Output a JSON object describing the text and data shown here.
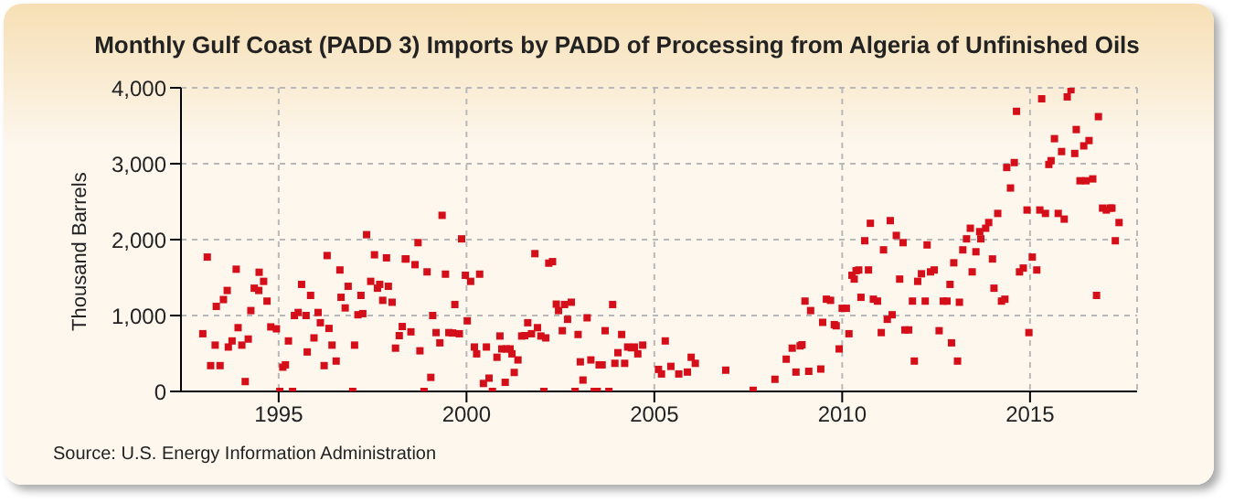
{
  "chart_data": {
    "type": "scatter",
    "title": "Monthly Gulf Coast (PADD 3) Imports by PADD of Processing from Algeria of Unfinished Oils",
    "ylabel": "Thousand Barrels",
    "annotations": [
      "Source: U.S. Energy Information Administration"
    ],
    "xlim": [
      1992.4,
      2017.85
    ],
    "xticks": [
      1995,
      2000,
      2005,
      2010,
      2015
    ],
    "ylim": [
      0,
      4000
    ],
    "yticks": [
      {
        "value": 0,
        "label": "0"
      },
      {
        "value": 1000,
        "label": "1,000"
      },
      {
        "value": 2000,
        "label": "2,000"
      },
      {
        "value": 3000,
        "label": "3,000"
      },
      {
        "value": 4000,
        "label": "4,000"
      }
    ],
    "grid": true,
    "marker": "square",
    "color": "#d40f1a",
    "x": [
      1992.98,
      1993.1,
      1993.19,
      1993.31,
      1993.34,
      1993.44,
      1993.53,
      1993.63,
      1993.66,
      1993.76,
      1993.87,
      1993.92,
      1994.02,
      1994.11,
      1994.19,
      1994.26,
      1994.35,
      1994.48,
      1994.47,
      1994.6,
      1994.69,
      1994.79,
      1994.94,
      1995.03,
      1995.11,
      1995.18,
      1995.26,
      1995.37,
      1995.42,
      1995.52,
      1995.61,
      1995.73,
      1995.76,
      1995.85,
      1995.94,
      1996.05,
      1996.11,
      1996.21,
      1996.29,
      1996.34,
      1996.42,
      1996.53,
      1996.63,
      1996.66,
      1996.77,
      1996.85,
      1996.97,
      1997.02,
      1997.11,
      1997.19,
      1997.24,
      1997.34,
      1997.45,
      1997.55,
      1997.63,
      1997.69,
      1997.77,
      1997.87,
      1997.92,
      1998.02,
      1998.11,
      1998.21,
      1998.29,
      1998.37,
      1998.39,
      1998.52,
      1998.63,
      1998.71,
      1998.76,
      1998.87,
      1998.95,
      1999.05,
      1999.1,
      1999.19,
      1999.29,
      1999.35,
      1999.44,
      1999.53,
      1999.63,
      1999.69,
      1999.81,
      1999.87,
      1999.97,
      2000.02,
      2000.11,
      2000.21,
      2000.27,
      2000.35,
      2000.45,
      2000.53,
      2000.6,
      2000.69,
      2000.81,
      2000.89,
      2000.94,
      2001.03,
      2001.06,
      2001.16,
      2001.21,
      2001.27,
      2001.37,
      2001.47,
      2001.55,
      2001.63,
      2001.73,
      2001.82,
      2001.89,
      2001.98,
      2002.06,
      2002.11,
      2002.19,
      2002.29,
      2002.39,
      2002.45,
      2002.55,
      2002.61,
      2002.69,
      2002.79,
      2002.89,
      2002.97,
      2003.03,
      2003.1,
      2003.21,
      2003.31,
      2003.4,
      2003.48,
      2003.53,
      2003.61,
      2003.69,
      2003.79,
      2003.89,
      2003.95,
      2004.03,
      2004.13,
      2004.21,
      2004.29,
      2004.39,
      2004.47,
      2004.56,
      2004.69,
      2005.11,
      2005.19,
      2005.29,
      2005.44,
      2005.65,
      2005.88,
      2005.98,
      2006.09,
      2006.9,
      2007.63,
      2008.21,
      2008.51,
      2008.67,
      2008.77,
      2008.88,
      2008.93,
      2009.01,
      2009.11,
      2009.16,
      2009.43,
      2009.48,
      2009.58,
      2009.69,
      2009.79,
      2009.84,
      2009.92,
      2010.0,
      2010.11,
      2010.18,
      2010.26,
      2010.32,
      2010.37,
      2010.44,
      2010.5,
      2010.6,
      2010.7,
      2010.75,
      2010.83,
      2010.94,
      2011.04,
      2011.1,
      2011.2,
      2011.28,
      2011.33,
      2011.44,
      2011.53,
      2011.62,
      2011.67,
      2011.77,
      2011.87,
      2011.92,
      2012.01,
      2012.11,
      2012.21,
      2012.26,
      2012.35,
      2012.45,
      2012.58,
      2012.69,
      2012.79,
      2012.87,
      2012.91,
      2012.97,
      2013.07,
      2013.12,
      2013.21,
      2013.31,
      2013.41,
      2013.46,
      2013.56,
      2013.66,
      2013.69,
      2013.82,
      2013.9,
      2014.0,
      2014.04,
      2014.14,
      2014.24,
      2014.33,
      2014.38,
      2014.48,
      2014.58,
      2014.64,
      2014.72,
      2014.82,
      2014.92,
      2014.97,
      2015.06,
      2015.18,
      2015.26,
      2015.31,
      2015.41,
      2015.5,
      2015.56,
      2015.65,
      2015.75,
      2015.84,
      2015.91,
      2015.99,
      2016.09,
      2016.19,
      2016.23,
      2016.33,
      2016.43,
      2016.49,
      2016.57,
      2016.67,
      2016.77,
      2016.82,
      2016.93,
      2017.03,
      2017.13,
      2017.18,
      2017.27,
      2017.37
    ],
    "values": [
      760,
      1770,
      340,
      610,
      1120,
      340,
      1210,
      1330,
      585,
      665,
      1610,
      840,
      610,
      130,
      690,
      1065,
      1360,
      1570,
      1330,
      1450,
      1190,
      850,
      825,
      0,
      320,
      350,
      665,
      0,
      1000,
      1040,
      1410,
      1000,
      520,
      1265,
      705,
      1040,
      905,
      340,
      1790,
      830,
      610,
      400,
      1600,
      1240,
      1100,
      1385,
      0,
      610,
      1010,
      1265,
      1025,
      2065,
      1450,
      1800,
      1360,
      1410,
      1200,
      1760,
      1385,
      1175,
      570,
      735,
      855,
      1745,
      1745,
      785,
      1670,
      1960,
      535,
      0,
      1575,
      185,
      1000,
      775,
      640,
      2320,
      1545,
      775,
      770,
      1145,
      760,
      2010,
      1530,
      930,
      1450,
      585,
      495,
      1545,
      105,
      585,
      175,
      0,
      450,
      730,
      560,
      120,
      560,
      560,
      495,
      250,
      415,
      730,
      735,
      905,
      760,
      1815,
      840,
      730,
      0,
      705,
      1690,
      1710,
      1150,
      1065,
      800,
      1145,
      950,
      1175,
      0,
      750,
      390,
      150,
      970,
      415,
      0,
      0,
      350,
      350,
      800,
      0,
      1145,
      370,
      510,
      750,
      370,
      585,
      575,
      585,
      495,
      610,
      290,
      230,
      665,
      330,
      230,
      255,
      450,
      370,
      280,
      15,
      160,
      425,
      570,
      255,
      600,
      615,
      1190,
      265,
      1065,
      295,
      910,
      1215,
      1200,
      880,
      865,
      560,
      1095,
      1095,
      760,
      1530,
      1480,
      1590,
      1600,
      1240,
      1985,
      1600,
      2215,
      1215,
      1190,
      775,
      1865,
      950,
      2250,
      1010,
      2055,
      1480,
      1960,
      810,
      810,
      1190,
      400,
      1450,
      1550,
      1190,
      1930,
      1575,
      1600,
      800,
      1190,
      1190,
      1410,
      640,
      1695,
      400,
      1175,
      1865,
      2010,
      2150,
      1575,
      1840,
      2105,
      2010,
      2150,
      2225,
      1745,
      1360,
      2345,
      1190,
      1215,
      2950,
      2680,
      3015,
      3690,
      1575,
      1625,
      2390,
      775,
      1770,
      1600,
      2390,
      3855,
      2345,
      2990,
      3040,
      3330,
      2345,
      3160,
      2270,
      3880,
      3975,
      3135,
      3450,
      2775,
      3235,
      2775,
      3305,
      2800,
      1265,
      3620,
      2415,
      2390,
      2415,
      2415,
      1985,
      2225
    ]
  }
}
